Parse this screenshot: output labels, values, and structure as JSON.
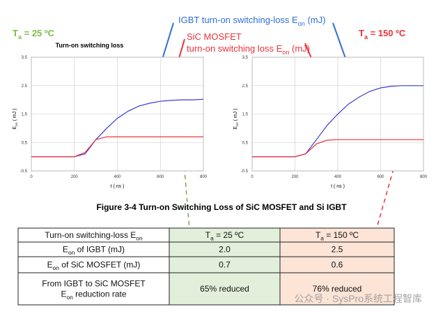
{
  "annotations": {
    "left_temp": [
      "T",
      "a",
      " = 25 ºC"
    ],
    "right_temp": [
      "T",
      "a",
      " = 150 ºC"
    ],
    "igbt_label": [
      "IGBT turn-on switching-loss E",
      "on",
      " (mJ)"
    ],
    "sic_label_1": "SiC MOSFET",
    "sic_label_2": [
      "turn-on switching loss E",
      "on",
      " (mJ)"
    ]
  },
  "chart_data": [
    {
      "type": "line",
      "title": "Turn-on switching loss",
      "x_label": "t ( ns )",
      "y_label": [
        "E",
        "on",
        "  ( mJ )"
      ],
      "x": [
        0,
        100,
        200,
        250,
        300,
        350,
        400,
        450,
        500,
        550,
        600,
        650,
        700,
        750,
        800
      ],
      "xlim": [
        0,
        800
      ],
      "xticks": [
        0,
        200,
        400,
        600,
        800
      ],
      "ylim": [
        -0.5,
        3.5
      ],
      "yticks": [
        -0.5,
        0.5,
        1.5,
        2.5,
        3.5
      ],
      "grid": true,
      "series": [
        {
          "color": "#3a3ad6",
          "values": [
            0,
            0,
            0,
            0.1,
            0.6,
            1.0,
            1.35,
            1.6,
            1.78,
            1.88,
            1.95,
            1.98,
            2.0,
            2.0,
            2.02
          ]
        },
        {
          "color": "#e8333a",
          "values": [
            0,
            0,
            0,
            0.15,
            0.6,
            0.7,
            0.7,
            0.7,
            0.7,
            0.7,
            0.7,
            0.7,
            0.7,
            0.7,
            0.7
          ]
        }
      ]
    },
    {
      "type": "line",
      "x_label": "t ( ns )",
      "y_label": [
        "E",
        "on",
        "  ( mJ )"
      ],
      "x": [
        0,
        100,
        200,
        250,
        300,
        350,
        400,
        450,
        500,
        550,
        600,
        650,
        700,
        750,
        800
      ],
      "xlim": [
        0,
        800
      ],
      "xticks": [
        0,
        200,
        400,
        600,
        800
      ],
      "ylim": [
        -0.5,
        3.5
      ],
      "yticks": [
        -0.5,
        0.5,
        1.5,
        2.5,
        3.5
      ],
      "grid": true,
      "series": [
        {
          "color": "#3a3ad6",
          "values": [
            0,
            0,
            0,
            0.1,
            0.6,
            1.1,
            1.5,
            1.85,
            2.1,
            2.3,
            2.42,
            2.48,
            2.5,
            2.5,
            2.5
          ]
        },
        {
          "color": "#e8333a",
          "values": [
            0,
            0,
            0,
            0.1,
            0.45,
            0.58,
            0.6,
            0.6,
            0.6,
            0.6,
            0.6,
            0.6,
            0.6,
            0.6,
            0.6
          ]
        }
      ]
    }
  ],
  "caption": "Figure 3-4    Turn-on Switching Loss of SiC MOSFET and Si IGBT",
  "table": {
    "header": [
      [
        [
          "Turn-on switching-loss E",
          "on"
        ]
      ],
      [
        [
          "T",
          "a",
          " = 25 ºC"
        ]
      ],
      [
        [
          "T",
          "a",
          " = 150 ºC"
        ]
      ]
    ],
    "rows": [
      [
        [
          [
            "E",
            "on",
            " of IGBT (mJ)"
          ]
        ],
        [
          [
            "2.0"
          ]
        ],
        [
          [
            "2.5"
          ]
        ]
      ],
      [
        [
          [
            "E",
            "on",
            " of SiC MOSFET (mJ)"
          ]
        ],
        [
          [
            "0.7"
          ]
        ],
        [
          [
            "0.6"
          ]
        ]
      ],
      [
        [
          [
            "From IGBT to SiC MOSFET"
          ],
          [
            "E",
            "on",
            " reduction rate"
          ]
        ],
        [
          [
            "65% reduced"
          ]
        ],
        [
          [
            "76% reduced"
          ]
        ]
      ]
    ]
  },
  "watermark": "公众号 · SysPro系统工程智库"
}
